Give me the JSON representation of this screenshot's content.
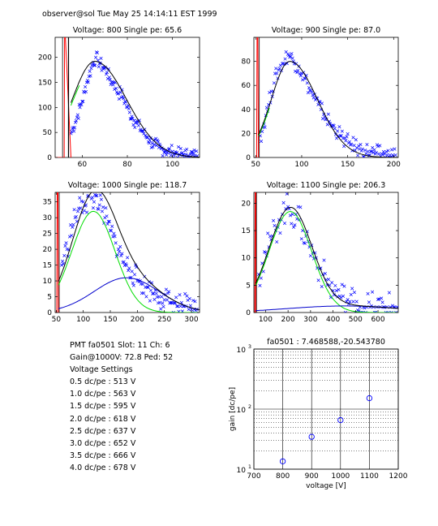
{
  "header": {
    "text": "observer@sol  Tue May 25 14:14:11 EST 1999"
  },
  "info": {
    "pmt_line": "PMT fa0501 Slot: 11 Ch: 6",
    "gain_line": "Gain@1000V: 72.8 Ped: 52",
    "settings_title": "Voltage Settings",
    "settings": [
      "0.5 dc/pe : 513 V",
      "1.0 dc/pe : 563 V",
      "1.5 dc/pe : 595 V",
      "2.0 dc/pe : 618 V",
      "2.5 dc/pe : 637 V",
      "3.0 dc/pe : 652 V",
      "3.5 dc/pe : 666 V",
      "4.0 dc/pe : 678 V"
    ]
  },
  "colors": {
    "data": "#0000ff",
    "fit": "#000000",
    "ped": "#ff0000",
    "comp1": "#00dd00",
    "comp2": "#0000cc"
  },
  "chart_data": [
    {
      "type": "scatter",
      "title": "Voltage: 800 Single pe: 65.6",
      "xlim": [
        48,
        112
      ],
      "ylim": [
        0,
        240
      ],
      "xticks": [
        60,
        80,
        100
      ],
      "yticks": [
        0,
        50,
        100,
        150,
        200
      ],
      "peak": 65.6,
      "amplitude": 192,
      "sigma_left": 10,
      "sigma_right": 14,
      "tail": 4,
      "noise": 14,
      "pedestal_x": 52,
      "cut_x": 55,
      "points": [
        [
          55,
          48
        ],
        [
          56,
          60
        ],
        [
          57,
          70
        ],
        [
          58,
          85
        ],
        [
          59,
          100
        ],
        [
          60,
          112
        ],
        [
          61,
          130
        ],
        [
          62,
          150
        ],
        [
          63,
          162
        ],
        [
          64,
          178
        ],
        [
          65,
          190
        ],
        [
          66,
          200
        ],
        [
          67,
          194
        ],
        [
          68,
          188
        ],
        [
          69,
          180
        ],
        [
          70,
          178
        ],
        [
          71,
          170
        ],
        [
          72,
          160
        ],
        [
          73,
          150
        ],
        [
          74,
          150
        ],
        [
          75,
          138
        ],
        [
          76,
          128
        ],
        [
          77,
          130
        ],
        [
          78,
          122
        ],
        [
          79,
          112
        ],
        [
          80,
          100
        ],
        [
          81,
          90
        ],
        [
          82,
          82
        ],
        [
          83,
          74
        ],
        [
          84,
          70
        ],
        [
          85,
          64
        ],
        [
          86,
          56
        ],
        [
          87,
          52
        ],
        [
          88,
          44
        ],
        [
          89,
          40
        ],
        [
          90,
          34
        ],
        [
          91,
          28
        ],
        [
          92,
          26
        ],
        [
          93,
          24
        ],
        [
          94,
          20
        ],
        [
          95,
          18
        ],
        [
          96,
          16
        ],
        [
          97,
          14
        ],
        [
          98,
          12
        ],
        [
          99,
          10
        ],
        [
          100,
          12
        ],
        [
          101,
          8
        ],
        [
          102,
          10
        ],
        [
          103,
          6
        ],
        [
          104,
          8
        ],
        [
          105,
          5
        ],
        [
          106,
          6
        ],
        [
          107,
          4
        ],
        [
          108,
          6
        ],
        [
          109,
          5
        ],
        [
          110,
          4
        ],
        [
          111,
          3
        ]
      ]
    },
    {
      "type": "scatter",
      "title": "Voltage: 900 Single pe: 87.0",
      "xlim": [
        48,
        205
      ],
      "ylim": [
        0,
        100
      ],
      "xticks": [
        50,
        100,
        150,
        200
      ],
      "yticks": [
        0,
        20,
        40,
        60,
        80
      ],
      "peak": 87.0,
      "amplitude": 80,
      "sigma_left": 20,
      "sigma_right": 30,
      "tail": 3,
      "noise": 7,
      "pedestal_x": 51,
      "cut_x": 53,
      "points": [
        [
          55,
          18
        ],
        [
          58,
          25
        ],
        [
          61,
          35
        ],
        [
          64,
          44
        ],
        [
          67,
          55
        ],
        [
          70,
          62
        ],
        [
          73,
          70
        ],
        [
          76,
          74
        ],
        [
          79,
          78
        ],
        [
          82,
          82
        ],
        [
          85,
          86
        ],
        [
          88,
          84
        ],
        [
          91,
          80
        ],
        [
          94,
          78
        ],
        [
          97,
          76
        ],
        [
          100,
          70
        ],
        [
          103,
          66
        ],
        [
          106,
          62
        ],
        [
          109,
          56
        ],
        [
          112,
          52
        ],
        [
          115,
          48
        ],
        [
          118,
          44
        ],
        [
          121,
          40
        ],
        [
          124,
          36
        ],
        [
          127,
          32
        ],
        [
          130,
          30
        ],
        [
          133,
          26
        ],
        [
          136,
          24
        ],
        [
          139,
          22
        ],
        [
          142,
          18
        ],
        [
          145,
          16
        ],
        [
          148,
          14
        ],
        [
          151,
          12
        ],
        [
          154,
          11
        ],
        [
          157,
          10
        ],
        [
          160,
          8
        ],
        [
          163,
          7
        ],
        [
          166,
          7
        ],
        [
          169,
          6
        ],
        [
          172,
          5
        ],
        [
          175,
          5
        ],
        [
          178,
          4
        ],
        [
          181,
          4
        ],
        [
          184,
          3
        ],
        [
          187,
          3
        ],
        [
          190,
          3
        ],
        [
          193,
          2
        ],
        [
          196,
          2
        ],
        [
          199,
          2
        ],
        [
          202,
          2
        ]
      ]
    },
    {
      "type": "scatter",
      "title": "Voltage: 1000 Single pe: 118.7",
      "xlim": [
        48,
        315
      ],
      "ylim": [
        0,
        38
      ],
      "xticks": [
        50,
        100,
        150,
        200,
        250,
        300
      ],
      "yticks": [
        0,
        5,
        10,
        15,
        20,
        25,
        30,
        35
      ],
      "peak": 118.7,
      "amplitude": 37,
      "sigma_left": 35,
      "sigma_right": 55,
      "tail": 1.5,
      "noise": 4,
      "pedestal_x": 51,
      "cut_x": 54,
      "comp1": {
        "mu": 118.7,
        "sigma": 40,
        "amplitude": 32
      },
      "comp2": {
        "mu": 180,
        "sigma": 60,
        "amplitude": 11
      },
      "points": [
        [
          60,
          15
        ],
        [
          65,
          18
        ],
        [
          70,
          20
        ],
        [
          75,
          24
        ],
        [
          80,
          27
        ],
        [
          85,
          30
        ],
        [
          90,
          32
        ],
        [
          95,
          33
        ],
        [
          100,
          35
        ],
        [
          105,
          34
        ],
        [
          110,
          37
        ],
        [
          115,
          36
        ],
        [
          120,
          35
        ],
        [
          125,
          37
        ],
        [
          130,
          34
        ],
        [
          135,
          32
        ],
        [
          140,
          30
        ],
        [
          145,
          28
        ],
        [
          150,
          26
        ],
        [
          155,
          24
        ],
        [
          160,
          22
        ],
        [
          165,
          20
        ],
        [
          170,
          18
        ],
        [
          175,
          16
        ],
        [
          180,
          15
        ],
        [
          185,
          14
        ],
        [
          190,
          13
        ],
        [
          195,
          12
        ],
        [
          200,
          10
        ],
        [
          205,
          10
        ],
        [
          210,
          9
        ],
        [
          215,
          8
        ],
        [
          220,
          8
        ],
        [
          225,
          7
        ],
        [
          230,
          6
        ],
        [
          235,
          6
        ],
        [
          240,
          5
        ],
        [
          245,
          5
        ],
        [
          250,
          4
        ],
        [
          255,
          4
        ],
        [
          260,
          3
        ],
        [
          265,
          3
        ],
        [
          270,
          3
        ],
        [
          275,
          2
        ],
        [
          280,
          2
        ],
        [
          285,
          2
        ],
        [
          290,
          2
        ],
        [
          295,
          1
        ],
        [
          300,
          1
        ],
        [
          305,
          1
        ],
        [
          310,
          1
        ]
      ]
    },
    {
      "type": "scatter",
      "title": "Voltage: 1100 Single pe: 206.3",
      "xlim": [
        48,
        690
      ],
      "ylim": [
        0,
        22
      ],
      "xticks": [
        100,
        200,
        300,
        400,
        500,
        600
      ],
      "yticks": [
        0,
        5,
        10,
        15,
        20
      ],
      "peak": 206.3,
      "amplitude": 19,
      "sigma_left": 70,
      "sigma_right": 110,
      "tail": 0.6,
      "noise": 3,
      "pedestal_x": 52,
      "cut_x": 56,
      "comp1": {
        "mu": 210,
        "sigma": 95,
        "amplitude": 18.5
      },
      "comp2": {
        "mu": 450,
        "sigma": 250,
        "amplitude": 1.2
      },
      "points": [
        [
          70,
          7
        ],
        [
          85,
          9
        ],
        [
          100,
          11
        ],
        [
          115,
          12
        ],
        [
          130,
          14
        ],
        [
          145,
          15
        ],
        [
          160,
          17
        ],
        [
          175,
          18
        ],
        [
          190,
          19
        ],
        [
          205,
          19
        ],
        [
          220,
          18
        ],
        [
          235,
          18
        ],
        [
          250,
          17
        ],
        [
          265,
          15
        ],
        [
          280,
          14
        ],
        [
          295,
          12
        ],
        [
          310,
          11
        ],
        [
          325,
          10
        ],
        [
          340,
          8
        ],
        [
          355,
          7
        ],
        [
          370,
          6
        ],
        [
          385,
          5
        ],
        [
          400,
          4
        ],
        [
          415,
          4
        ],
        [
          430,
          3
        ],
        [
          445,
          3
        ],
        [
          460,
          2
        ],
        [
          475,
          2
        ],
        [
          490,
          2
        ],
        [
          505,
          2
        ],
        [
          520,
          1
        ],
        [
          535,
          1
        ],
        [
          550,
          1
        ],
        [
          565,
          1
        ],
        [
          580,
          1
        ],
        [
          595,
          1
        ],
        [
          610,
          1
        ],
        [
          625,
          1
        ],
        [
          640,
          1
        ],
        [
          655,
          1
        ],
        [
          670,
          1
        ],
        [
          685,
          1
        ]
      ]
    },
    {
      "type": "line",
      "title": "fa0501 : 7.468588,-20.543780",
      "xlabel": "voltage [V]",
      "ylabel": "gain [dc/pe]",
      "xlim": [
        700,
        1200
      ],
      "ylim": [
        10,
        1000
      ],
      "yscale": "log",
      "xticks": [
        700,
        800,
        900,
        1000,
        1100,
        1200
      ],
      "yticks": [
        10,
        100,
        1000
      ],
      "ytick_labels": [
        "10",
        "10",
        "10"
      ],
      "ytick_exponents": [
        "1",
        "2",
        "3"
      ],
      "x": [
        800,
        900,
        1000,
        1100
      ],
      "values": [
        13.5,
        34.6,
        65.6,
        152
      ],
      "fit": {
        "slope": 7.468588,
        "intercept": -20.54378
      }
    }
  ]
}
